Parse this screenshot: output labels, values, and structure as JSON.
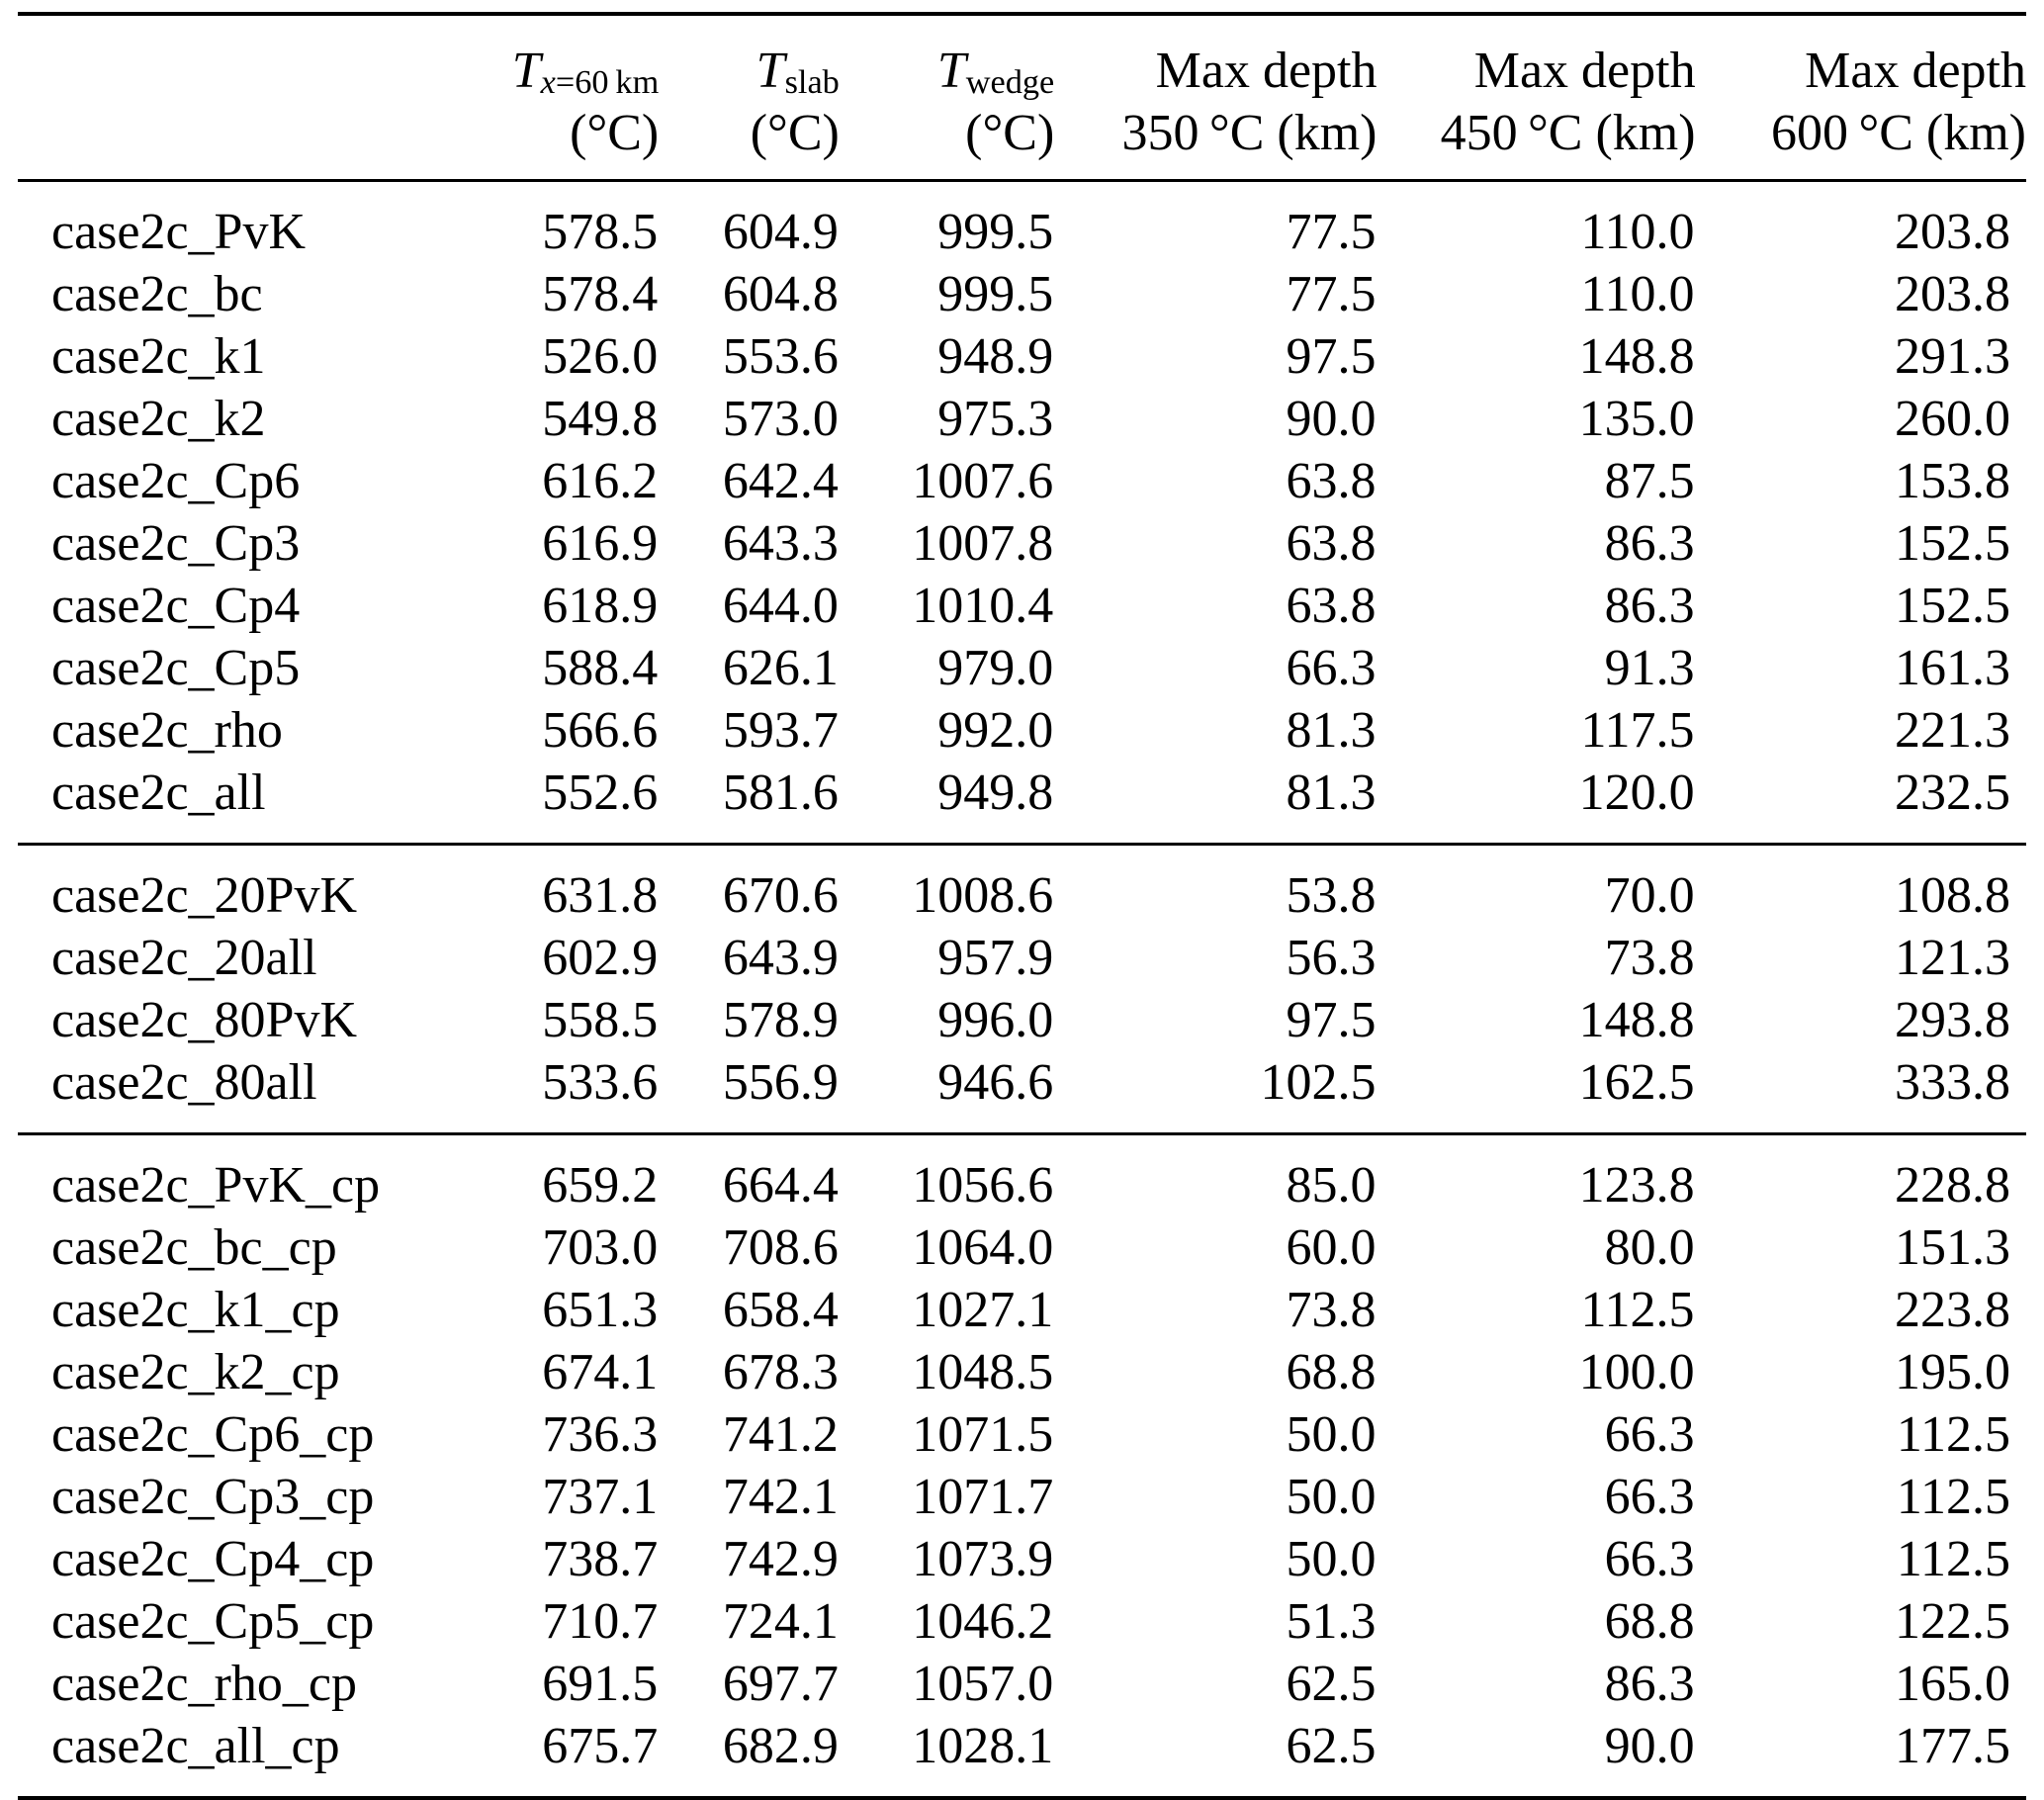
{
  "header": {
    "temp_cols": [
      {
        "symbol": "T",
        "sub_italic": "x",
        "sub_rest": "=60 km",
        "unit": "(°C)"
      },
      {
        "symbol": "T",
        "sub_italic": "",
        "sub_rest": "slab",
        "unit": "(°C)"
      },
      {
        "symbol": "T",
        "sub_italic": "",
        "sub_rest": "wedge",
        "unit": "(°C)"
      }
    ],
    "depth_cols": [
      {
        "line1": "Max depth",
        "line2": "350 °C (km)"
      },
      {
        "line1": "Max depth",
        "line2": "450 °C (km)"
      },
      {
        "line1": "Max depth",
        "line2": "600 °C (km)"
      }
    ]
  },
  "groups": [
    {
      "rows": [
        {
          "label": "case2c_PvK",
          "values": [
            "578.5",
            "604.9",
            "999.5",
            "77.5",
            "110.0",
            "203.8"
          ]
        },
        {
          "label": "case2c_bc",
          "values": [
            "578.4",
            "604.8",
            "999.5",
            "77.5",
            "110.0",
            "203.8"
          ]
        },
        {
          "label": "case2c_k1",
          "values": [
            "526.0",
            "553.6",
            "948.9",
            "97.5",
            "148.8",
            "291.3"
          ]
        },
        {
          "label": "case2c_k2",
          "values": [
            "549.8",
            "573.0",
            "975.3",
            "90.0",
            "135.0",
            "260.0"
          ]
        },
        {
          "label": "case2c_Cp6",
          "values": [
            "616.2",
            "642.4",
            "1007.6",
            "63.8",
            "87.5",
            "153.8"
          ]
        },
        {
          "label": "case2c_Cp3",
          "values": [
            "616.9",
            "643.3",
            "1007.8",
            "63.8",
            "86.3",
            "152.5"
          ]
        },
        {
          "label": "case2c_Cp4",
          "values": [
            "618.9",
            "644.0",
            "1010.4",
            "63.8",
            "86.3",
            "152.5"
          ]
        },
        {
          "label": "case2c_Cp5",
          "values": [
            "588.4",
            "626.1",
            "979.0",
            "66.3",
            "91.3",
            "161.3"
          ]
        },
        {
          "label": "case2c_rho",
          "values": [
            "566.6",
            "593.7",
            "992.0",
            "81.3",
            "117.5",
            "221.3"
          ]
        },
        {
          "label": "case2c_all",
          "values": [
            "552.6",
            "581.6",
            "949.8",
            "81.3",
            "120.0",
            "232.5"
          ]
        }
      ]
    },
    {
      "rows": [
        {
          "label": "case2c_20PvK",
          "values": [
            "631.8",
            "670.6",
            "1008.6",
            "53.8",
            "70.0",
            "108.8"
          ]
        },
        {
          "label": "case2c_20all",
          "values": [
            "602.9",
            "643.9",
            "957.9",
            "56.3",
            "73.8",
            "121.3"
          ]
        },
        {
          "label": "case2c_80PvK",
          "values": [
            "558.5",
            "578.9",
            "996.0",
            "97.5",
            "148.8",
            "293.8"
          ]
        },
        {
          "label": "case2c_80all",
          "values": [
            "533.6",
            "556.9",
            "946.6",
            "102.5",
            "162.5",
            "333.8"
          ]
        }
      ]
    },
    {
      "rows": [
        {
          "label": "case2c_PvK_cp",
          "values": [
            "659.2",
            "664.4",
            "1056.6",
            "85.0",
            "123.8",
            "228.8"
          ]
        },
        {
          "label": "case2c_bc_cp",
          "values": [
            "703.0",
            "708.6",
            "1064.0",
            "60.0",
            "80.0",
            "151.3"
          ]
        },
        {
          "label": "case2c_k1_cp",
          "values": [
            "651.3",
            "658.4",
            "1027.1",
            "73.8",
            "112.5",
            "223.8"
          ]
        },
        {
          "label": "case2c_k2_cp",
          "values": [
            "674.1",
            "678.3",
            "1048.5",
            "68.8",
            "100.0",
            "195.0"
          ]
        },
        {
          "label": "case2c_Cp6_cp",
          "values": [
            "736.3",
            "741.2",
            "1071.5",
            "50.0",
            "66.3",
            "112.5"
          ]
        },
        {
          "label": "case2c_Cp3_cp",
          "values": [
            "737.1",
            "742.1",
            "1071.7",
            "50.0",
            "66.3",
            "112.5"
          ]
        },
        {
          "label": "case2c_Cp4_cp",
          "values": [
            "738.7",
            "742.9",
            "1073.9",
            "50.0",
            "66.3",
            "112.5"
          ]
        },
        {
          "label": "case2c_Cp5_cp",
          "values": [
            "710.7",
            "724.1",
            "1046.2",
            "51.3",
            "68.8",
            "122.5"
          ]
        },
        {
          "label": "case2c_rho_cp",
          "values": [
            "691.5",
            "697.7",
            "1057.0",
            "62.5",
            "86.3",
            "165.0"
          ]
        },
        {
          "label": "case2c_all_cp",
          "values": [
            "675.7",
            "682.9",
            "1028.1",
            "62.5",
            "90.0",
            "177.5"
          ]
        }
      ]
    }
  ]
}
